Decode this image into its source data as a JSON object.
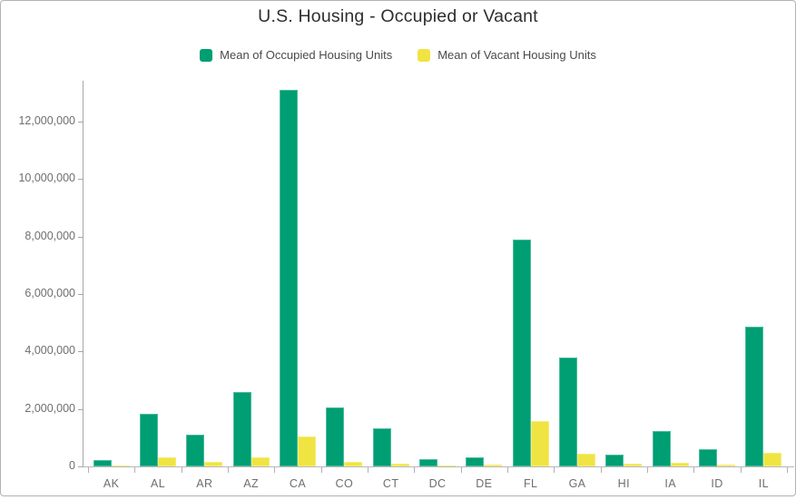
{
  "chart_data": {
    "type": "bar",
    "title": "U.S. Housing - Occupied or Vacant",
    "categories": [
      "AK",
      "AL",
      "AR",
      "AZ",
      "CA",
      "CO",
      "CT",
      "DC",
      "DE",
      "FL",
      "GA",
      "HI",
      "IA",
      "ID",
      "IL"
    ],
    "series": [
      {
        "name": "Mean of Occupied Housing Units",
        "color": "#009E73",
        "values": [
          230000,
          1840000,
          1120000,
          2600000,
          13100000,
          2060000,
          1340000,
          240000,
          310000,
          7900000,
          3790000,
          420000,
          1220000,
          610000,
          4850000
        ]
      },
      {
        "name": "Mean of Vacant Housing Units",
        "color": "#F0E442",
        "values": [
          40000,
          320000,
          160000,
          320000,
          1050000,
          170000,
          105000,
          30000,
          55000,
          1580000,
          440000,
          80000,
          125000,
          65000,
          465000
        ]
      }
    ],
    "xlabel": "",
    "ylabel": "",
    "ylim": [
      0,
      12000000
    ],
    "y_tick_interval": 2000000,
    "y_tick_labels": [
      "0",
      "2,000,000",
      "4,000,000",
      "6,000,000",
      "8,000,000",
      "10,000,000",
      "12,000,000"
    ],
    "legend_position": "top",
    "grid": false
  },
  "colors": {
    "title_text": "#2e2e2e",
    "legend_text": "#4a4a4a",
    "axis_text": "#6e6e6e",
    "axis_line": "#a6a6a6",
    "card_border": "#b2b2b2",
    "background": "#ffffff"
  }
}
